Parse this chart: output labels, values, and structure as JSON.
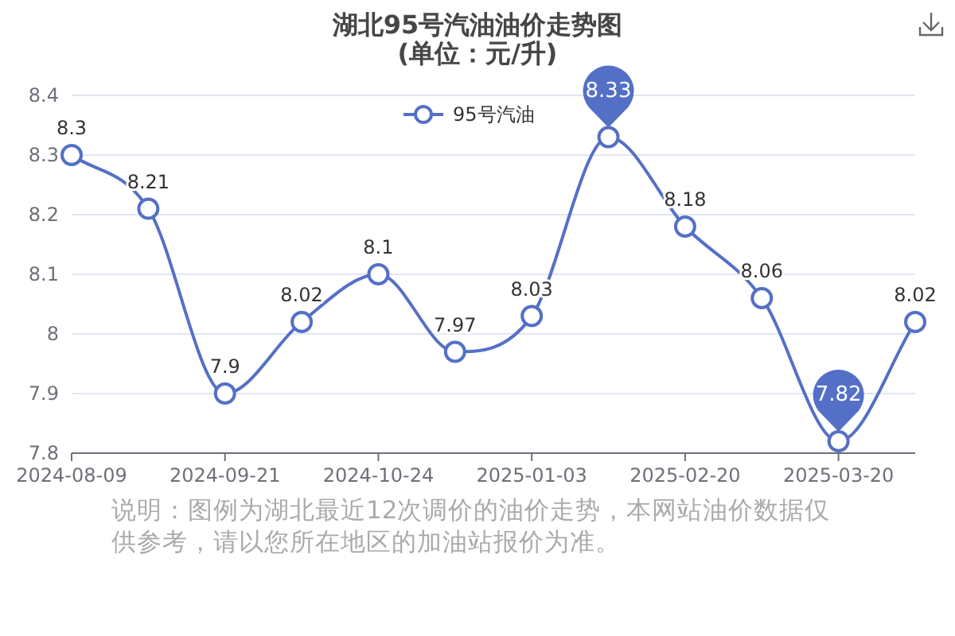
{
  "chart_data": {
    "type": "line",
    "title": "湖北95号汽油油价走势图",
    "subtitle": "(单位：元/升)",
    "categories": [
      "2024-08-09",
      null,
      "2024-09-21",
      null,
      "2024-10-24",
      null,
      "2025-01-03",
      null,
      "2025-02-20",
      null,
      "2025-03-20",
      null
    ],
    "series": [
      {
        "name": "95号汽油",
        "color": "#5470c6",
        "values": [
          8.3,
          8.21,
          7.9,
          8.02,
          8.1,
          7.97,
          8.03,
          8.33,
          8.18,
          8.06,
          7.82,
          8.02
        ],
        "value_labels": [
          "8.3",
          "8.21",
          "7.9",
          "8.02",
          "8.1",
          "7.97",
          "8.03",
          null,
          "8.18",
          "8.06",
          null,
          "8.02"
        ]
      }
    ],
    "ylim": [
      7.8,
      8.4
    ],
    "yticks": [
      7.8,
      7.9,
      8,
      8.1,
      8.2,
      8.3,
      8.4
    ],
    "grid": "y",
    "legend": "top",
    "marker": "circle",
    "line_style": "solid",
    "annotations": [
      {
        "text": "8.33",
        "y": 8.33
      },
      {
        "text": "7.82",
        "y": 7.82
      },
      "说明：图例为湖北最近12次调价的油价走势，本网站油价数据仅供参考，请以您所在地区的加油站报价为准。"
    ]
  }
}
